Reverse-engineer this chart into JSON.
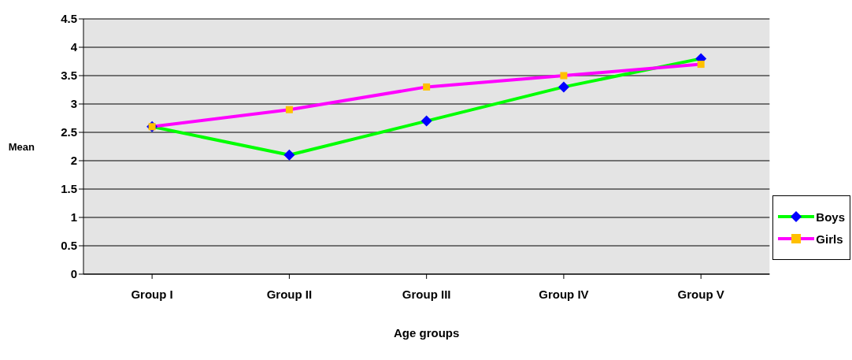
{
  "chart_data": {
    "type": "line",
    "xlabel": "Age groups",
    "ylabel": "Mean",
    "categories": [
      "Group I",
      "Group II",
      "Group III",
      "Group IV",
      "Group V"
    ],
    "series": [
      {
        "name": "Boys",
        "color": "#00ff00",
        "marker": "diamond",
        "values": [
          2.6,
          2.1,
          2.7,
          3.3,
          3.8
        ]
      },
      {
        "name": "Girls",
        "color": "#ff00ff",
        "marker": "square",
        "values": [
          2.6,
          2.9,
          3.3,
          3.5,
          3.7
        ]
      }
    ],
    "ylim": [
      0,
      4.5
    ],
    "yticks": [
      0,
      0.5,
      1,
      1.5,
      2,
      2.5,
      3,
      3.5,
      4,
      4.5
    ],
    "grid": "y",
    "legend": "right"
  }
}
